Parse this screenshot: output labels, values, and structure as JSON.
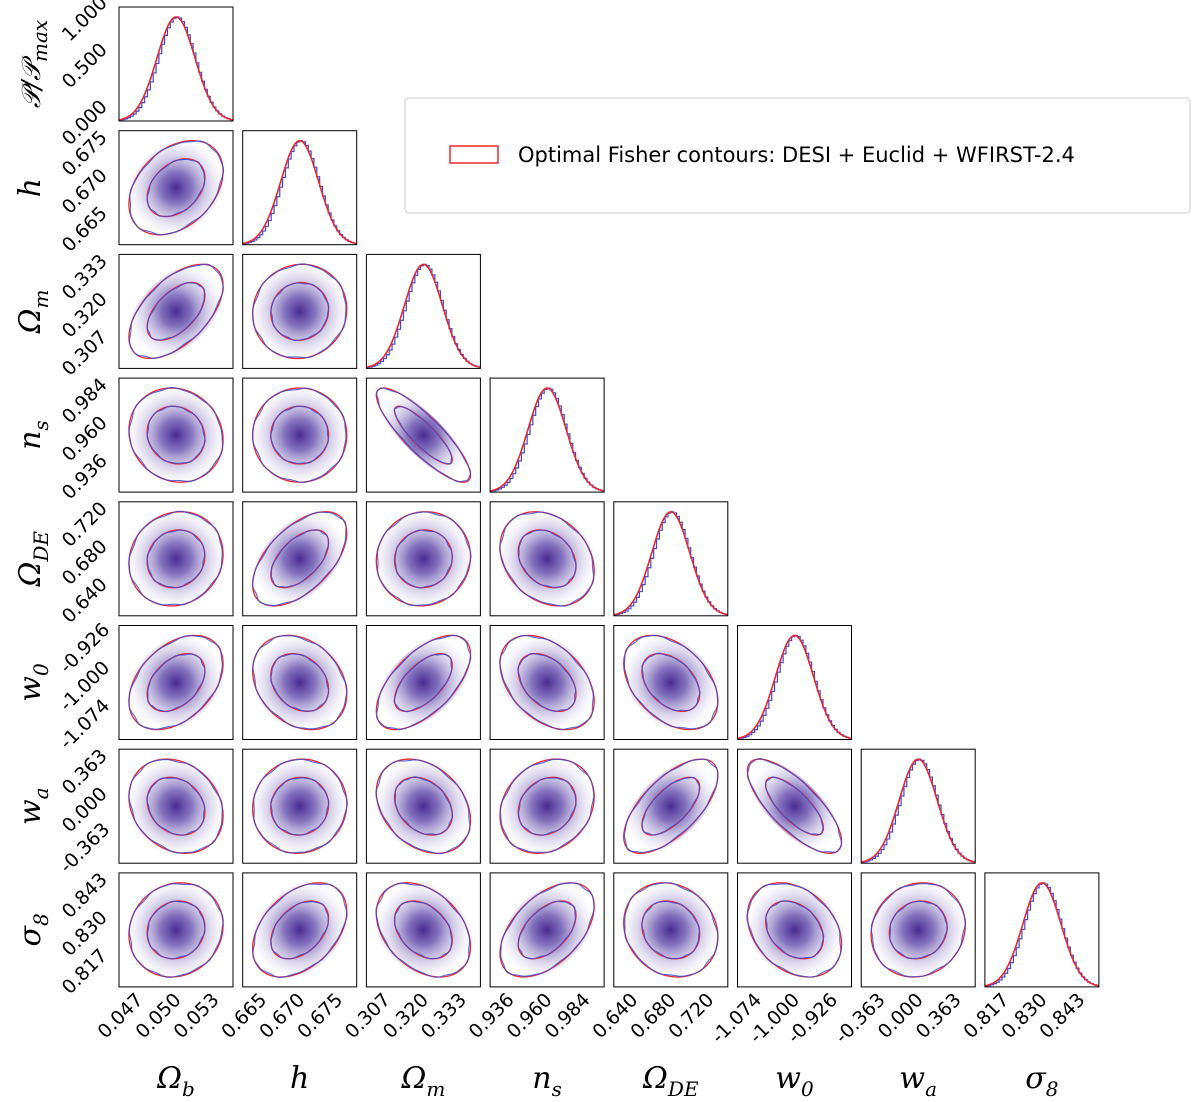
{
  "legend": {
    "label": "Optimal Fisher contours: DESI + Euclid + WFIRST-2.4",
    "edge_color": "#e8282e"
  },
  "colors": {
    "fisher": "#e8282e",
    "mcmc": "#3b4cd6",
    "density": "#3f1f8c",
    "overlap": "#6b1f7a"
  },
  "chart_data": {
    "type": "corner",
    "diag_ylabel": {
      "main": "𝒫/𝒫",
      "sub": "max"
    },
    "diag_ticks": [
      "0.000",
      "0.500",
      "1.000"
    ],
    "parameters": [
      {
        "name": "Ω",
        "sub": "b",
        "mean": 0.05,
        "sigma": 0.0015,
        "range": [
          0.0455,
          0.0545
        ],
        "ticks": [
          "0.047",
          "0.050",
          "0.053"
        ],
        "tick_values": [
          0.047,
          0.05,
          0.053
        ]
      },
      {
        "name": "h",
        "sub": "",
        "mean": 0.67,
        "sigma": 0.0025,
        "range": [
          0.6625,
          0.6775
        ],
        "ticks": [
          "0.665",
          "0.670",
          "0.675"
        ],
        "tick_values": [
          0.665,
          0.67,
          0.675
        ]
      },
      {
        "name": "Ω",
        "sub": "m",
        "mean": 0.32,
        "sigma": 0.0065,
        "range": [
          0.3005,
          0.3395
        ],
        "ticks": [
          "0.307",
          "0.320",
          "0.333"
        ],
        "tick_values": [
          0.307,
          0.32,
          0.333
        ]
      },
      {
        "name": "n",
        "sub": "s",
        "mean": 0.96,
        "sigma": 0.012,
        "range": [
          0.924,
          0.996
        ],
        "ticks": [
          "0.936",
          "0.960",
          "0.984"
        ],
        "tick_values": [
          0.936,
          0.96,
          0.984
        ]
      },
      {
        "name": "Ω",
        "sub": "DE",
        "mean": 0.68,
        "sigma": 0.02,
        "range": [
          0.62,
          0.74
        ],
        "ticks": [
          "0.640",
          "0.680",
          "0.720"
        ],
        "tick_values": [
          0.64,
          0.68,
          0.72
        ]
      },
      {
        "name": "w",
        "sub": "0",
        "mean": -1.0,
        "sigma": 0.037,
        "range": [
          -1.111,
          -0.889
        ],
        "ticks": [
          "-1.074",
          "-1.000",
          "-0.926"
        ],
        "tick_values": [
          -1.074,
          -1.0,
          -0.926
        ]
      },
      {
        "name": "w",
        "sub": "a",
        "mean": 0.0,
        "sigma": 0.1815,
        "range": [
          -0.5445,
          0.5445
        ],
        "ticks": [
          "-0.363",
          "0.000",
          "0.363"
        ],
        "tick_values": [
          -0.363,
          0.0,
          0.363
        ]
      },
      {
        "name": "σ",
        "sub": "8",
        "mean": 0.83,
        "sigma": 0.0065,
        "range": [
          0.8105,
          0.8495
        ],
        "ticks": [
          "0.817",
          "0.830",
          "0.843"
        ],
        "tick_values": [
          0.817,
          0.83,
          0.843
        ]
      }
    ],
    "correlations": [
      [
        1.0,
        0.35,
        0.55,
        -0.1,
        0.1,
        0.4,
        -0.2,
        0.1
      ],
      [
        0.35,
        1.0,
        0.05,
        0.0,
        0.55,
        -0.25,
        0.05,
        0.4
      ],
      [
        0.55,
        0.05,
        1.0,
        -0.85,
        0.05,
        0.6,
        -0.3,
        -0.35
      ],
      [
        -0.1,
        0.0,
        -0.85,
        1.0,
        -0.25,
        -0.4,
        0.2,
        0.5
      ],
      [
        0.1,
        0.55,
        0.05,
        -0.25,
        1.0,
        -0.4,
        0.65,
        -0.15
      ],
      [
        0.4,
        -0.25,
        0.6,
        -0.4,
        -0.4,
        1.0,
        -0.75,
        -0.3
      ],
      [
        -0.2,
        0.05,
        -0.3,
        0.2,
        0.65,
        -0.75,
        1.0,
        0.1
      ],
      [
        0.1,
        0.4,
        -0.35,
        0.5,
        -0.15,
        -0.3,
        0.1,
        1.0
      ]
    ],
    "contour_levels_sigma": [
      1,
      2
    ]
  }
}
